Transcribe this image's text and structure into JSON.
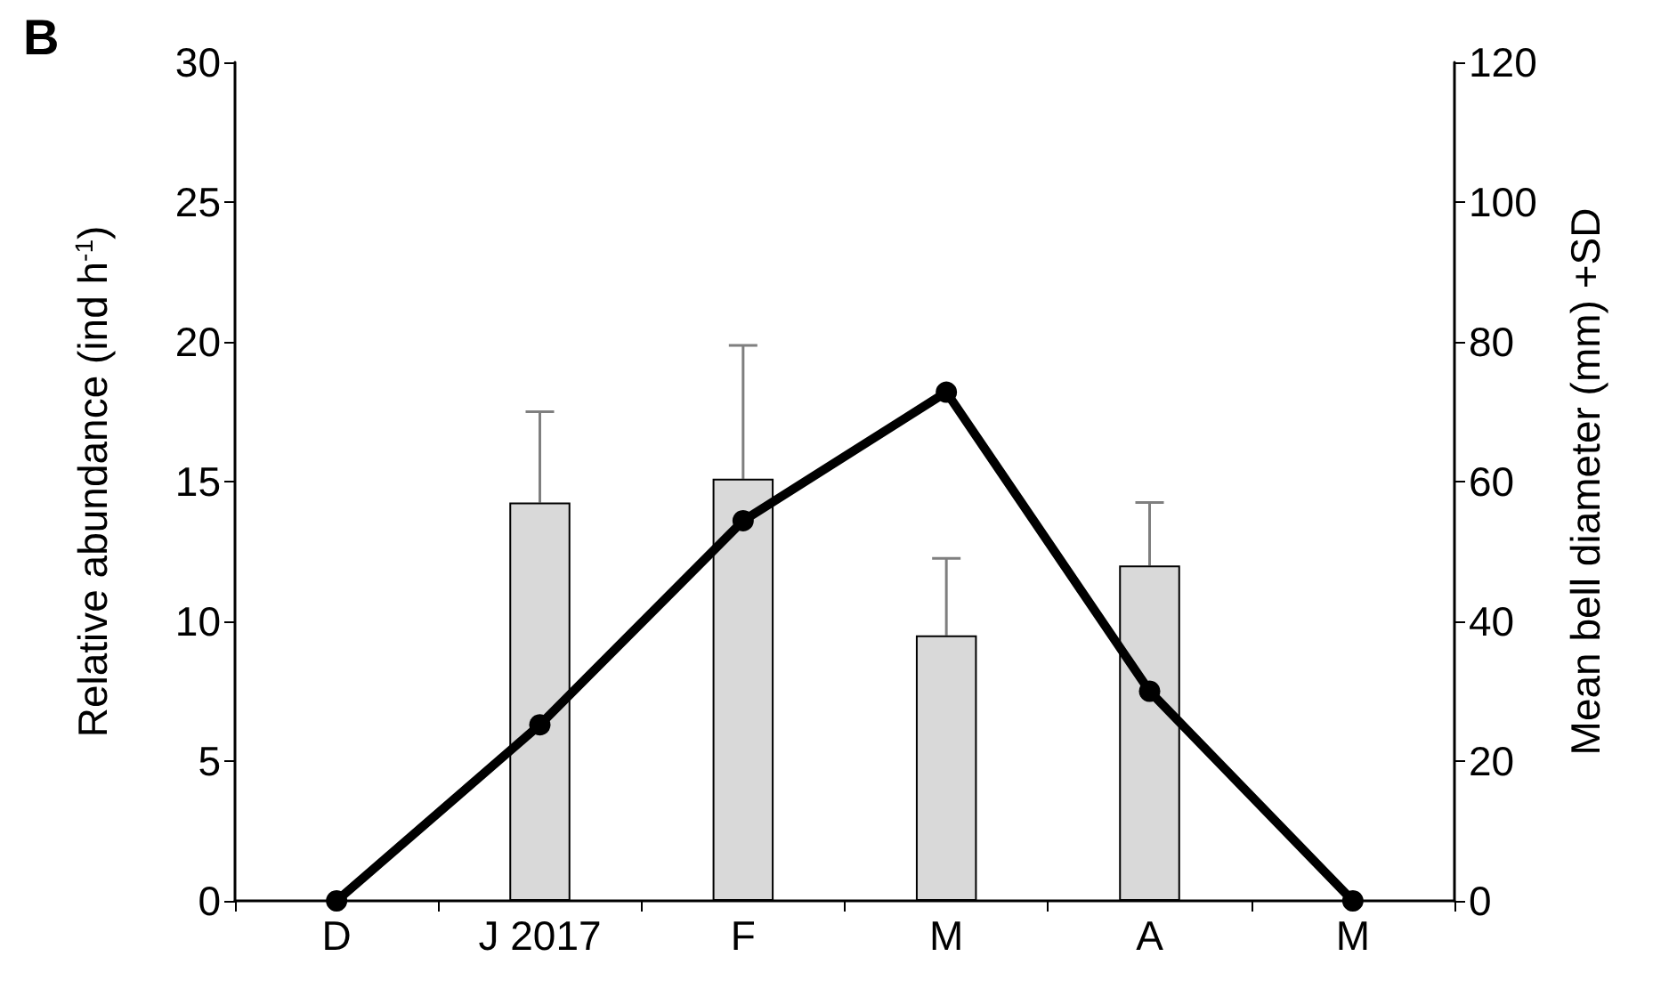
{
  "chart_data": {
    "type": "bar",
    "title": "B",
    "categories": [
      "D",
      "J 2017",
      "F",
      "M",
      "A",
      "M"
    ],
    "ylabel": "Relative abundance (ind h$^{-1}$)",
    "y2label": "Mean bell diameter (mm) +SD",
    "ylim": [
      0,
      30
    ],
    "yticks": [
      0,
      5,
      10,
      15,
      20,
      25,
      30
    ],
    "y2lim": [
      0,
      120
    ],
    "y2ticks": [
      0,
      20,
      40,
      60,
      80,
      100,
      120
    ],
    "series": [
      {
        "axis": "y2",
        "color": "#d9d9d9",
        "values": [
          null,
          57,
          60.4,
          38,
          48,
          null
        ],
        "errors": [
          null,
          [
            57,
            70
          ],
          [
            60.4,
            79.5
          ],
          [
            38,
            49
          ],
          [
            48,
            57
          ],
          null
        ]
      },
      {
        "type": "line",
        "axis": "y",
        "color": "#000000",
        "values": [
          0,
          6.3,
          13.6,
          18.2,
          7.5,
          0
        ],
        "marker": "circle",
        "line_style": "solid"
      }
    ],
    "grid": false
  }
}
